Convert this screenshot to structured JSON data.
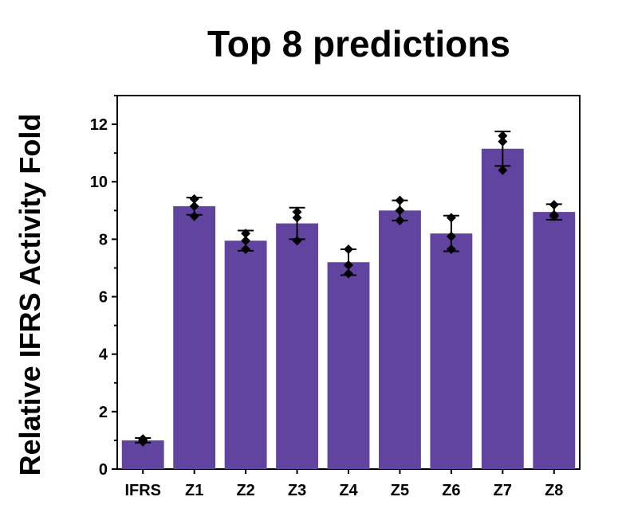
{
  "chart_data": {
    "type": "bar",
    "title": "Top 8 predictions",
    "xlabel": "",
    "ylabel": "Relative  IFRS Activity Fold",
    "categories": [
      "IFRS",
      "Z1",
      "Z2",
      "Z3",
      "Z4",
      "Z5",
      "Z6",
      "Z7",
      "Z8"
    ],
    "values": [
      1.0,
      9.15,
      7.95,
      8.55,
      7.2,
      9.0,
      8.2,
      11.15,
      8.95
    ],
    "error": [
      0.08,
      0.3,
      0.35,
      0.55,
      0.45,
      0.35,
      0.62,
      0.6,
      0.27
    ],
    "points": [
      [
        0.95,
        1.0,
        1.05
      ],
      [
        8.8,
        9.15,
        9.4
      ],
      [
        7.65,
        7.95,
        8.2
      ],
      [
        7.95,
        8.75,
        8.95
      ],
      [
        6.8,
        7.1,
        7.65
      ],
      [
        8.65,
        9.0,
        9.35
      ],
      [
        7.65,
        8.1,
        8.75
      ],
      [
        10.4,
        11.4,
        11.6
      ],
      [
        8.8,
        8.85,
        9.2
      ]
    ],
    "ylim": [
      0,
      13
    ],
    "yticks": [
      0,
      2,
      4,
      6,
      8,
      10,
      12
    ],
    "grid": false,
    "legend": "none",
    "colors": {
      "bar": "#6143a0",
      "marker": "#000000"
    }
  }
}
